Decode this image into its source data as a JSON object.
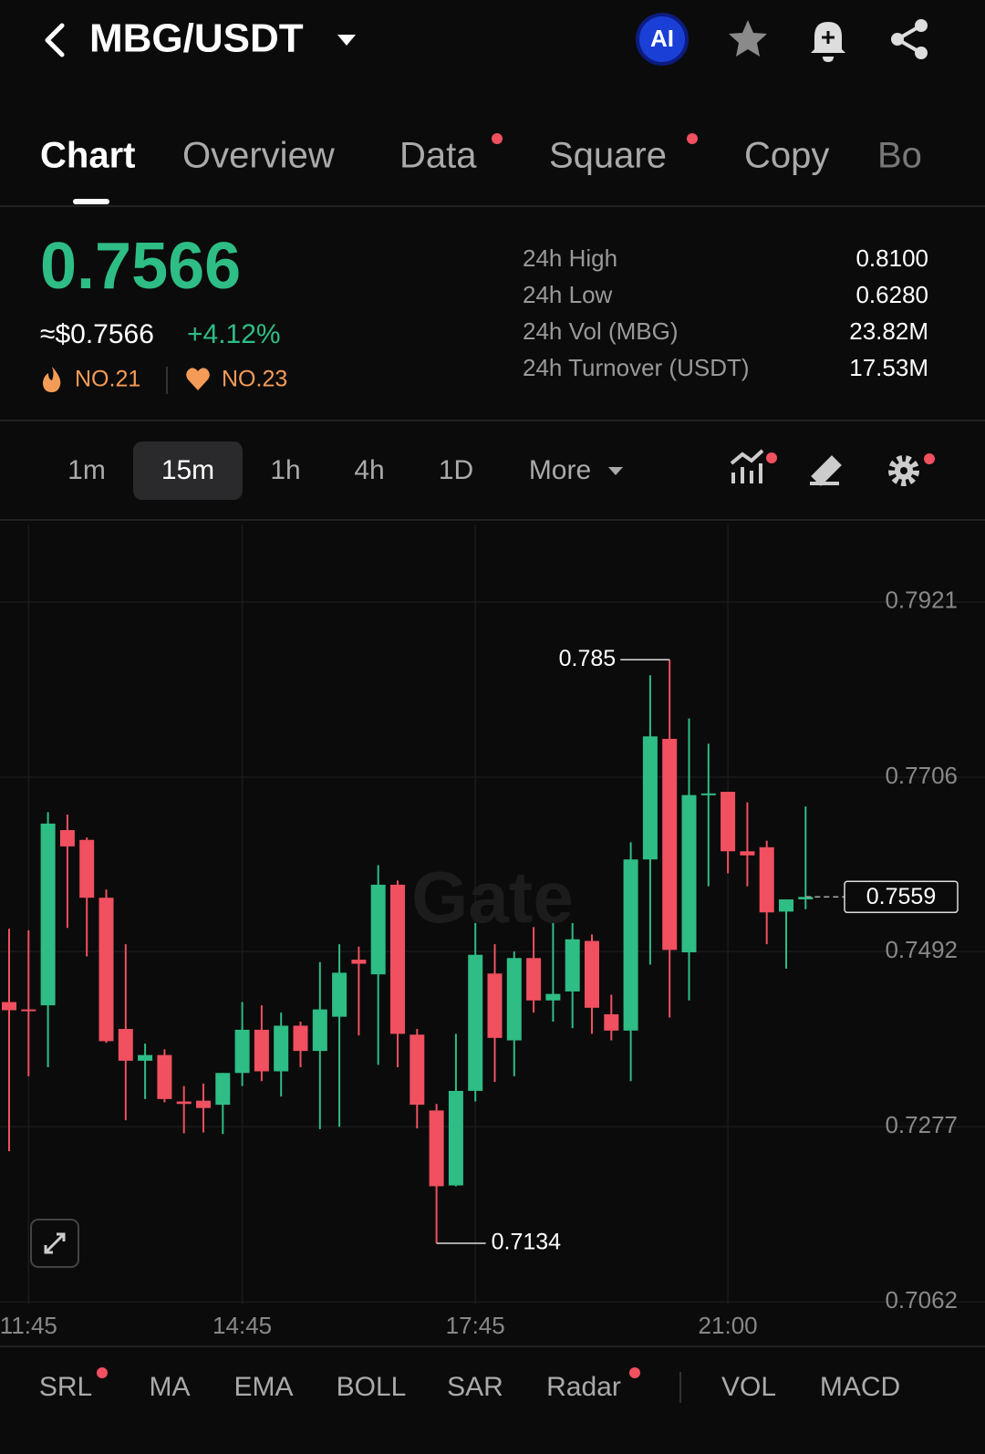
{
  "header": {
    "title": "MBG/USDT",
    "ai_badge": "AI"
  },
  "tabs": [
    "Chart",
    "Overview",
    "Data",
    "Square",
    "Copy",
    "Bo"
  ],
  "ticker": {
    "price": "0.7566",
    "usd_price": "≈$0.7566",
    "change": "+4.12%",
    "rankings": [
      "NO.21",
      "NO.23"
    ]
  },
  "stats": [
    {
      "label": "24h High",
      "value": "0.8100"
    },
    {
      "label": "24h Low",
      "value": "0.6280"
    },
    {
      "label": "24h Vol (MBG)",
      "value": "23.82M"
    },
    {
      "label": "24h Turnover (USDT)",
      "value": "17.53M"
    }
  ],
  "intervals": [
    "1m",
    "15m",
    "1h",
    "4h",
    "1D",
    "More"
  ],
  "chart_data": {
    "type": "candlestick",
    "watermark": "Gate",
    "up_color": "#2ebd85",
    "down_color": "#f0505f",
    "categories": [
      null,
      "11:45",
      null,
      null,
      null,
      null,
      null,
      null,
      null,
      null,
      null,
      null,
      "14:45",
      null,
      null,
      null,
      null,
      null,
      null,
      null,
      null,
      null,
      null,
      null,
      "17:45",
      null,
      null,
      null,
      null,
      null,
      null,
      null,
      null,
      null,
      null,
      null,
      null,
      "21:00",
      null,
      null,
      null,
      null
    ],
    "open": [
      0.743,
      0.7421,
      0.7426,
      0.7641,
      0.7629,
      0.7558,
      0.7397,
      0.7358,
      0.7365,
      0.7308,
      0.7309,
      0.7304,
      0.7343,
      0.7396,
      0.7345,
      0.7401,
      0.737,
      0.7412,
      0.7482,
      0.7464,
      0.7574,
      0.739,
      0.7297,
      0.7205,
      0.7321,
      0.7465,
      0.7383,
      0.7484,
      0.7432,
      0.7443,
      0.7505,
      0.7415,
      0.7395,
      0.7605,
      0.7753,
      0.7491,
      0.7684,
      0.7688,
      0.7615,
      0.762,
      0.7541,
      0.7556
    ],
    "high": [
      0.752,
      0.7518,
      0.7663,
      0.766,
      0.7632,
      0.7568,
      0.7501,
      0.7379,
      0.7372,
      0.7327,
      0.733,
      0.7343,
      0.743,
      0.7426,
      0.7417,
      0.7406,
      0.7479,
      0.7501,
      0.7498,
      0.7598,
      0.7579,
      0.7397,
      0.7305,
      0.7391,
      0.7527,
      0.7501,
      0.7492,
      0.7522,
      0.7527,
      0.7527,
      0.7513,
      0.7439,
      0.7626,
      0.7831,
      0.785,
      0.7778,
      0.7747,
      0.7688,
      0.7675,
      0.7628,
      0.7556,
      0.767
    ],
    "low": [
      0.7247,
      0.7339,
      0.735,
      0.7521,
      0.7486,
      0.738,
      0.7285,
      0.7311,
      0.7307,
      0.7269,
      0.727,
      0.7268,
      0.7327,
      0.7333,
      0.7314,
      0.735,
      0.7274,
      0.7277,
      0.7389,
      0.7353,
      0.735,
      0.7275,
      0.7134,
      0.7204,
      0.7308,
      0.7332,
      0.7339,
      0.7417,
      0.7406,
      0.7398,
      0.7391,
      0.7383,
      0.7333,
      0.7476,
      0.7411,
      0.7432,
      0.7572,
      0.7588,
      0.7572,
      0.7501,
      0.7471,
      0.7544
    ],
    "close": [
      0.742,
      0.7419,
      0.7649,
      0.7621,
      0.7558,
      0.7382,
      0.7358,
      0.7365,
      0.7311,
      0.7305,
      0.73,
      0.7343,
      0.7396,
      0.7345,
      0.7401,
      0.737,
      0.7421,
      0.7466,
      0.7477,
      0.7574,
      0.7391,
      0.7304,
      0.7204,
      0.7321,
      0.7488,
      0.7386,
      0.7484,
      0.7432,
      0.744,
      0.7507,
      0.7423,
      0.7395,
      0.7605,
      0.7756,
      0.7494,
      0.7684,
      0.7686,
      0.7615,
      0.761,
      0.754,
      0.7556,
      0.7559
    ],
    "ylim": [
      0.7059,
      0.8016
    ],
    "yticks": [
      0.7062,
      0.7277,
      0.7492,
      0.7706,
      0.7921
    ],
    "grid": true
  },
  "indicators": [
    "SRL",
    "MA",
    "EMA",
    "BOLL",
    "SAR",
    "Radar",
    "VOL",
    "MACD"
  ]
}
